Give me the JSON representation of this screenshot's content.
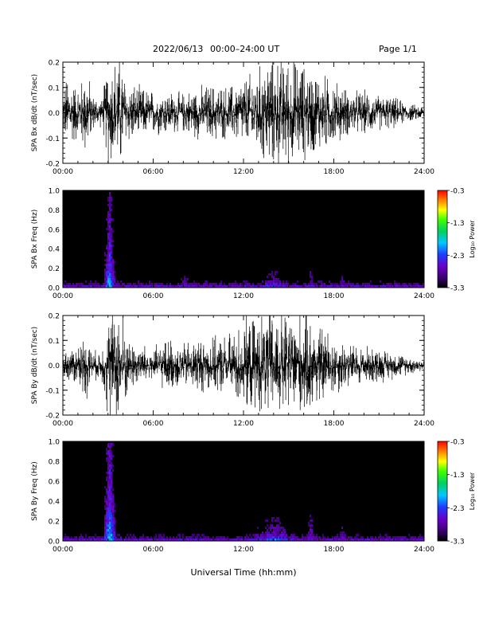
{
  "header": {
    "date": "2022/06/13",
    "time_range": "00:00–24:00 UT",
    "page": "Page 1/1"
  },
  "x_axis": {
    "label": "Universal Time (hh:mm)",
    "ticks": [
      "00:00",
      "06:00",
      "12:00",
      "18:00",
      "24:00"
    ],
    "range_hours": [
      0,
      24
    ]
  },
  "colorbar": {
    "label": "Log₁₀ Power",
    "ticks": [
      "-0.3",
      "-1.3",
      "-2.3",
      "-3.3"
    ],
    "range": [
      -3.3,
      -0.3
    ]
  },
  "chart_data": [
    {
      "type": "line",
      "ylabel": "SPA Bx dB/dt (nT/sec)",
      "ylim": [
        -0.2,
        0.2
      ],
      "yticks": [
        "0.2",
        "0.1",
        "0.0",
        "-0.1",
        "-0.2"
      ],
      "xlim": [
        0,
        24
      ],
      "x_unit": "hours UT",
      "envelope": [
        {
          "x": 0.0,
          "amp": 0.08
        },
        {
          "x": 0.3,
          "amp": 0.18
        },
        {
          "x": 1.0,
          "amp": 0.12
        },
        {
          "x": 1.6,
          "amp": 0.2
        },
        {
          "x": 2.0,
          "amp": 0.08
        },
        {
          "x": 2.6,
          "amp": 0.06
        },
        {
          "x": 3.0,
          "amp": 0.25
        },
        {
          "x": 3.9,
          "amp": 0.25
        },
        {
          "x": 4.2,
          "amp": 0.15
        },
        {
          "x": 5.0,
          "amp": 0.12
        },
        {
          "x": 6.0,
          "amp": 0.1
        },
        {
          "x": 7.0,
          "amp": 0.1
        },
        {
          "x": 8.0,
          "amp": 0.09
        },
        {
          "x": 9.0,
          "amp": 0.12
        },
        {
          "x": 10.0,
          "amp": 0.13
        },
        {
          "x": 11.0,
          "amp": 0.12
        },
        {
          "x": 12.0,
          "amp": 0.16
        },
        {
          "x": 13.0,
          "amp": 0.2
        },
        {
          "x": 13.5,
          "amp": 0.25
        },
        {
          "x": 15.0,
          "amp": 0.25
        },
        {
          "x": 16.5,
          "amp": 0.2
        },
        {
          "x": 18.0,
          "amp": 0.15
        },
        {
          "x": 19.0,
          "amp": 0.1
        },
        {
          "x": 20.0,
          "amp": 0.1
        },
        {
          "x": 21.0,
          "amp": 0.08
        },
        {
          "x": 22.0,
          "amp": 0.07
        },
        {
          "x": 23.0,
          "amp": 0.04
        },
        {
          "x": 24.0,
          "amp": 0.03
        }
      ]
    },
    {
      "type": "heatmap",
      "ylabel": "SPA Bx Freq (Hz)",
      "ylim": [
        0.0,
        1.0
      ],
      "yticks": [
        "1.0",
        "0.8",
        "0.6",
        "0.4",
        "0.2",
        "0.0"
      ],
      "xlim": [
        0,
        24
      ],
      "zlim": [
        -3.3,
        -0.3
      ],
      "events": [
        {
          "x": 3.1,
          "width_h": 0.25,
          "top_hz": 1.0,
          "peak": -1.8
        },
        {
          "x": 1.3,
          "width_h": 0.4,
          "top_hz": 0.3,
          "peak": -2.7
        },
        {
          "x": 8.2,
          "width_h": 0.6,
          "top_hz": 0.75,
          "peak": -2.6
        },
        {
          "x": 14.0,
          "width_h": 1.5,
          "top_hz": 0.2,
          "peak": -2.2
        },
        {
          "x": 16.5,
          "width_h": 0.4,
          "top_hz": 0.9,
          "peak": -2.6
        },
        {
          "x": 18.6,
          "width_h": 0.5,
          "top_hz": 0.7,
          "peak": -2.7
        },
        {
          "x": 20.2,
          "width_h": 0.4,
          "top_hz": 0.4,
          "peak": -2.8
        }
      ]
    },
    {
      "type": "line",
      "ylabel": "SPA By dB/dt (nT/sec)",
      "ylim": [
        -0.2,
        0.2
      ],
      "yticks": [
        "0.2",
        "0.1",
        "0.0",
        "-0.1",
        "-0.2"
      ],
      "xlim": [
        0,
        24
      ],
      "x_unit": "hours UT",
      "envelope": [
        {
          "x": 0.0,
          "amp": 0.05
        },
        {
          "x": 1.0,
          "amp": 0.1
        },
        {
          "x": 1.6,
          "amp": 0.15
        },
        {
          "x": 2.0,
          "amp": 0.06
        },
        {
          "x": 2.6,
          "amp": 0.08
        },
        {
          "x": 3.0,
          "amp": 0.25
        },
        {
          "x": 4.0,
          "amp": 0.25
        },
        {
          "x": 4.3,
          "amp": 0.12
        },
        {
          "x": 5.0,
          "amp": 0.1
        },
        {
          "x": 6.0,
          "amp": 0.08
        },
        {
          "x": 7.0,
          "amp": 0.12
        },
        {
          "x": 8.0,
          "amp": 0.1
        },
        {
          "x": 9.0,
          "amp": 0.13
        },
        {
          "x": 10.0,
          "amp": 0.12
        },
        {
          "x": 11.0,
          "amp": 0.14
        },
        {
          "x": 12.0,
          "amp": 0.2
        },
        {
          "x": 13.0,
          "amp": 0.22
        },
        {
          "x": 13.5,
          "amp": 0.25
        },
        {
          "x": 15.0,
          "amp": 0.25
        },
        {
          "x": 16.5,
          "amp": 0.22
        },
        {
          "x": 18.0,
          "amp": 0.14
        },
        {
          "x": 19.0,
          "amp": 0.1
        },
        {
          "x": 20.0,
          "amp": 0.09
        },
        {
          "x": 21.0,
          "amp": 0.08
        },
        {
          "x": 22.0,
          "amp": 0.06
        },
        {
          "x": 23.0,
          "amp": 0.04
        },
        {
          "x": 24.0,
          "amp": 0.03
        }
      ]
    },
    {
      "type": "heatmap",
      "ylabel": "SPA By Freq (Hz)",
      "ylim": [
        0.0,
        1.0
      ],
      "yticks": [
        "1.0",
        "0.8",
        "0.6",
        "0.4",
        "0.2",
        "0.0"
      ],
      "xlim": [
        0,
        24
      ],
      "zlim": [
        -3.3,
        -0.3
      ],
      "events": [
        {
          "x": 3.1,
          "width_h": 0.25,
          "top_hz": 1.0,
          "peak": -1.7
        },
        {
          "x": 1.3,
          "width_h": 0.4,
          "top_hz": 0.35,
          "peak": -2.6
        },
        {
          "x": 8.2,
          "width_h": 0.6,
          "top_hz": 0.5,
          "peak": -2.8
        },
        {
          "x": 14.0,
          "width_h": 1.8,
          "top_hz": 0.25,
          "peak": -2.1
        },
        {
          "x": 16.5,
          "width_h": 0.4,
          "top_hz": 0.9,
          "peak": -2.5
        },
        {
          "x": 18.6,
          "width_h": 0.5,
          "top_hz": 0.8,
          "peak": -2.6
        },
        {
          "x": 21.0,
          "width_h": 0.5,
          "top_hz": 0.5,
          "peak": -2.8
        }
      ]
    }
  ]
}
